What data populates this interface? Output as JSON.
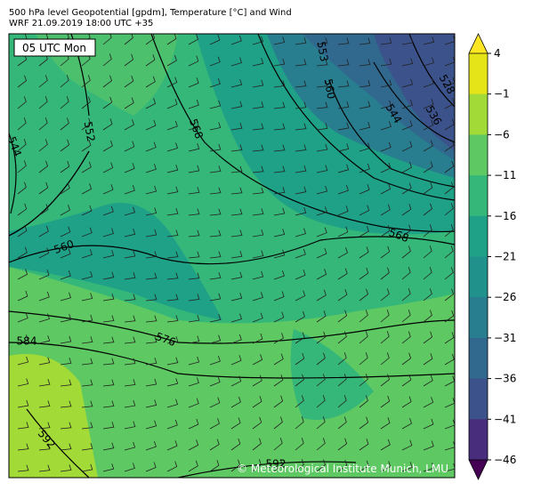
{
  "header": {
    "line1": "500 hPa level Geopotential [gpdm], Temperature [°C] and Wind",
    "line2": "WRF 21.09.2019 18:00 UTC +35"
  },
  "time_label": "05 UTC Mon",
  "contour_labels": [
    "544",
    "552",
    "568",
    "553",
    "560",
    "528",
    "544",
    "536",
    "560",
    "568",
    "584",
    "576",
    "592",
    "592"
  ],
  "colorbar": {
    "ticks": [
      {
        "value": 4,
        "label": "4"
      },
      {
        "value": -1,
        "label": "−1"
      },
      {
        "value": -6,
        "label": "−6"
      },
      {
        "value": -11,
        "label": "−11"
      },
      {
        "value": -16,
        "label": "−16"
      },
      {
        "value": -21,
        "label": "−21"
      },
      {
        "value": -26,
        "label": "−26"
      },
      {
        "value": -31,
        "label": "−31"
      },
      {
        "value": -36,
        "label": "−36"
      },
      {
        "value": -41,
        "label": "−41"
      },
      {
        "value": -46,
        "label": "−46"
      }
    ],
    "colors": [
      "#e5e419",
      "#a2da37",
      "#5ec962",
      "#35b779",
      "#1fa187",
      "#21918c",
      "#287d8e",
      "#31688e",
      "#3b528b",
      "#472d7b",
      "#440154"
    ]
  },
  "credit": "© Meteorological Institute Munich, LMU"
}
